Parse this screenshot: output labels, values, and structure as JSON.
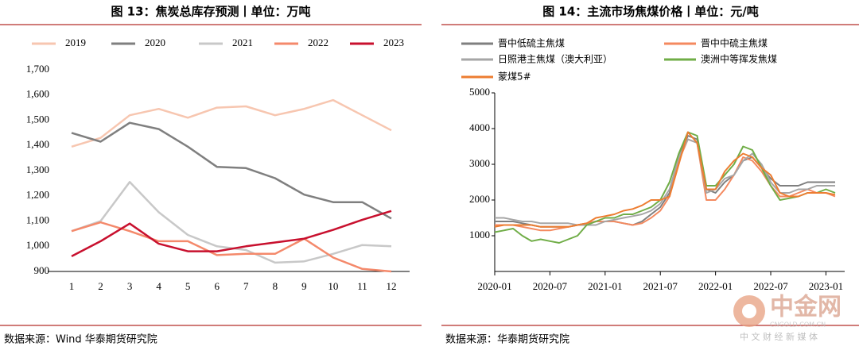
{
  "chart_data": [
    {
      "type": "line",
      "title": "图 13：焦炭总库存预测丨单位：万吨",
      "source": "数据来源：Wind  华泰期货研究院",
      "categories": [
        "1",
        "2",
        "3",
        "4",
        "5",
        "6",
        "7",
        "8",
        "9",
        "10",
        "11",
        "12"
      ],
      "series": [
        {
          "name": "2019",
          "color": "#f7c6b0",
          "values": [
            1395,
            1430,
            1520,
            1545,
            1510,
            1550,
            1555,
            1520,
            1545,
            1580,
            1520,
            1460
          ]
        },
        {
          "name": "2020",
          "color": "#7f7f7f",
          "values": [
            1450,
            1415,
            1490,
            1465,
            1395,
            1315,
            1310,
            1270,
            1205,
            1175,
            1175,
            1110
          ]
        },
        {
          "name": "2021",
          "color": "#c8c8c8",
          "values": [
            1060,
            1100,
            1255,
            1135,
            1045,
            1000,
            985,
            935,
            940,
            970,
            1005,
            1000
          ]
        },
        {
          "name": "2022",
          "color": "#f4896b",
          "values": [
            1060,
            1095,
            1060,
            1020,
            1020,
            965,
            970,
            970,
            1030,
            955,
            910,
            900
          ]
        },
        {
          "name": "2023",
          "color": "#c8102e",
          "values": [
            960,
            1020,
            1090,
            1010,
            980,
            980,
            1000,
            1015,
            1030,
            1065,
            1105,
            1140
          ]
        }
      ],
      "ylim": [
        900,
        1700
      ],
      "yticks": [
        900,
        {
          "value": 1000,
          "label": "1,000"
        },
        {
          "value": 1100,
          "label": "1,100"
        },
        {
          "value": 1200,
          "label": "1,200"
        },
        {
          "value": 1300,
          "label": "1,300"
        },
        {
          "value": 1400,
          "label": "1,400"
        },
        {
          "value": 1500,
          "label": "1,500"
        },
        {
          "value": 1600,
          "label": "1,600"
        },
        {
          "value": 1700,
          "label": "1,700"
        }
      ],
      "grid": false
    },
    {
      "type": "line",
      "title": "图 14：主流市场焦煤价格丨单位：元/吨",
      "source": "数据来源：华泰期货研究院",
      "x": [
        "2020-01",
        "2020-02",
        "2020-03",
        "2020-04",
        "2020-05",
        "2020-06",
        "2020-07",
        "2020-08",
        "2020-09",
        "2020-10",
        "2020-11",
        "2020-12",
        "2021-01",
        "2021-02",
        "2021-03",
        "2021-04",
        "2021-05",
        "2021-06",
        "2021-07",
        "2021-08",
        "2021-09",
        "2021-10",
        "2021-11",
        "2021-12",
        "2022-01",
        "2022-02",
        "2022-03",
        "2022-04",
        "2022-05",
        "2022-06",
        "2022-07",
        "2022-08",
        "2022-09",
        "2022-10",
        "2022-11",
        "2022-12",
        "2023-01",
        "2023-02"
      ],
      "xticks": [
        "2020-01",
        "2020-07",
        "2021-01",
        "2021-07",
        "2022-01",
        "2022-07",
        "2023-01"
      ],
      "series": [
        {
          "name": "晋中低硫主焦煤",
          "color": "#7f7f7f",
          "values": [
            1400,
            1400,
            1400,
            1350,
            1300,
            1250,
            1250,
            1250,
            1250,
            1300,
            1350,
            1400,
            1400,
            1400,
            1350,
            1300,
            1400,
            1600,
            1800,
            2200,
            3200,
            3800,
            3700,
            2300,
            2200,
            2500,
            2700,
            3100,
            3200,
            2900,
            2600,
            2400,
            2400,
            2400,
            2500,
            2500,
            2500,
            2500
          ]
        },
        {
          "name": "晋中中硫主焦煤",
          "color": "#f4895f",
          "values": [
            1300,
            1300,
            1300,
            1250,
            1200,
            1150,
            1150,
            1200,
            1250,
            1300,
            1350,
            1400,
            1400,
            1400,
            1350,
            1300,
            1350,
            1500,
            1700,
            2100,
            3100,
            3700,
            3600,
            2000,
            2000,
            2300,
            2700,
            3200,
            3100,
            2800,
            2400,
            2100,
            2100,
            2200,
            2300,
            2200,
            2200,
            2100
          ]
        },
        {
          "name": "日照港主焦煤（澳大利亚）",
          "color": "#a6a6a6",
          "values": [
            1500,
            1500,
            1450,
            1400,
            1400,
            1350,
            1350,
            1350,
            1350,
            1300,
            1300,
            1300,
            1400,
            1450,
            1500,
            1550,
            1600,
            1700,
            1900,
            2300,
            3200,
            3700,
            3600,
            2200,
            2300,
            2600,
            2700,
            3100,
            3300,
            3000,
            2500,
            2200,
            2200,
            2300,
            2300,
            2400,
            2400,
            2400
          ]
        },
        {
          "name": "澳洲中等挥发焦煤",
          "color": "#70ad47",
          "values": [
            1100,
            1150,
            1200,
            1000,
            850,
            900,
            850,
            800,
            900,
            1000,
            1300,
            1400,
            1500,
            1500,
            1600,
            1600,
            1700,
            1800,
            2000,
            2500,
            3300,
            3900,
            3800,
            2400,
            2400,
            2700,
            3000,
            3500,
            3400,
            2900,
            2400,
            2000,
            2050,
            2100,
            2200,
            2200,
            2300,
            2200
          ]
        },
        {
          "name": "蒙煤5#",
          "color": "#ed7d31",
          "values": [
            1250,
            1300,
            1300,
            1300,
            1300,
            1250,
            1250,
            1250,
            1250,
            1300,
            1350,
            1500,
            1550,
            1600,
            1700,
            1750,
            1850,
            2000,
            2000,
            2100,
            3000,
            3900,
            3600,
            2300,
            2300,
            2800,
            3100,
            3300,
            3200,
            2900,
            2700,
            2200,
            2100,
            2100,
            2200,
            2200,
            2200,
            2150
          ]
        }
      ],
      "ylim": [
        0,
        5000
      ],
      "yticks": [
        1000,
        2000,
        3000,
        4000,
        5000
      ],
      "grid": false
    }
  ],
  "watermark": {
    "brand": "中金网",
    "domain": "CNGOLD.COM.CN",
    "slogan": "中 文 财 经 新 媒 体"
  }
}
